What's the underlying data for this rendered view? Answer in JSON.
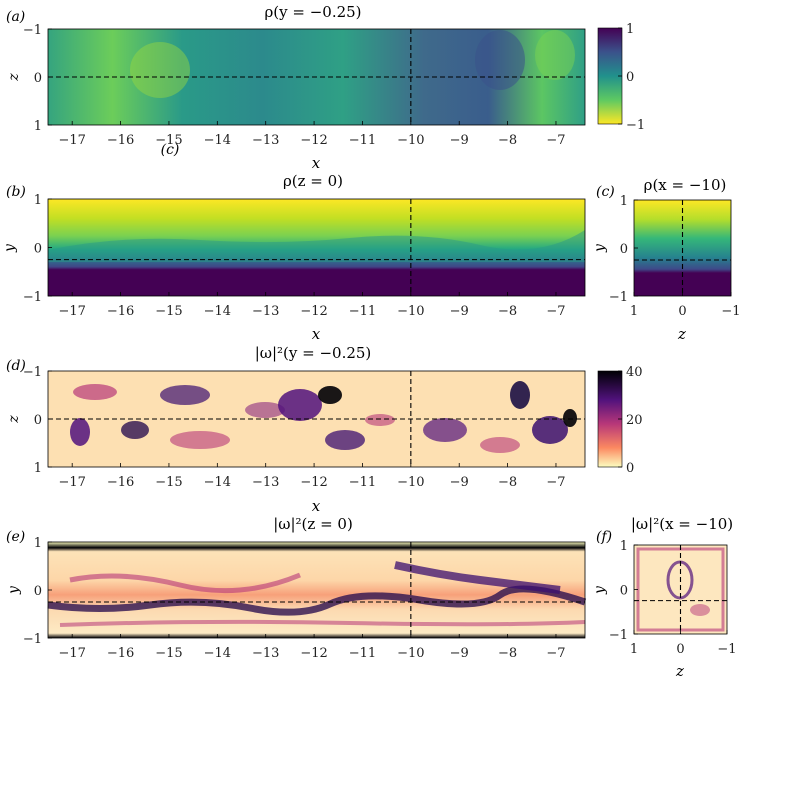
{
  "chart_data": [
    {
      "type": "heatmap",
      "panel": "(a)",
      "title": "ρ(y = −0.25)",
      "xlabel": "x",
      "ylabel": "z",
      "xlim": [
        -17.5,
        -6.4
      ],
      "ylim": [
        1,
        -1
      ],
      "xticks": [
        -17,
        -16,
        -15,
        -14,
        -13,
        -12,
        -11,
        -10,
        -9,
        -8,
        -7
      ],
      "yticks": [
        -1,
        0,
        1
      ],
      "colormap": "viridis-reversed",
      "field": "density",
      "dashed_lines": {
        "x": -10,
        "z": 0
      }
    },
    {
      "type": "heatmap",
      "panel": "(b)",
      "title": "ρ(z = 0)",
      "xlabel": "x",
      "ylabel": "y",
      "xlim": [
        -17.5,
        -6.4
      ],
      "ylim": [
        -1,
        1
      ],
      "xticks": [
        -17,
        -16,
        -15,
        -14,
        -13,
        -12,
        -11,
        -10,
        -9,
        -8,
        -7
      ],
      "yticks": [
        -1,
        0,
        1
      ],
      "colormap": "viridis-reversed",
      "field": "density",
      "dashed_lines": {
        "x": -10,
        "y": -0.25
      }
    },
    {
      "type": "heatmap",
      "panel": "(c)",
      "title": "ρ(x = −10)",
      "xlabel": "z",
      "ylabel": "y",
      "xlim": [
        1,
        -1
      ],
      "ylim": [
        -1,
        1
      ],
      "xticks": [
        1,
        0,
        -1
      ],
      "yticks": [
        -1,
        0,
        1
      ],
      "colormap": "viridis-reversed",
      "field": "density",
      "dashed_lines": {
        "z": 0,
        "y": -0.25
      }
    },
    {
      "type": "heatmap",
      "panel": "(d)",
      "title": "|ω|²(y = −0.25)",
      "xlabel": "x",
      "ylabel": "z",
      "xlim": [
        -17.5,
        -6.4
      ],
      "ylim": [
        1,
        -1
      ],
      "xticks": [
        -17,
        -16,
        -15,
        -14,
        -13,
        -12,
        -11,
        -10,
        -9,
        -8,
        -7
      ],
      "yticks": [
        -1,
        0,
        1
      ],
      "colormap": "magma-reversed",
      "field": "enstrophy",
      "dashed_lines": {
        "x": -10,
        "z": 0
      }
    },
    {
      "type": "heatmap",
      "panel": "(e)",
      "title": "|ω|²(z = 0)",
      "xlabel": "",
      "ylabel": "y",
      "xlim": [
        -17.5,
        -6.4
      ],
      "ylim": [
        -1,
        1
      ],
      "xticks": [
        -17,
        -16,
        -15,
        -14,
        -13,
        -12,
        -11,
        -10,
        -9,
        -8,
        -7
      ],
      "yticks": [
        -1,
        0,
        1
      ],
      "colormap": "magma-reversed",
      "field": "enstrophy",
      "dashed_lines": {
        "x": -10,
        "y": -0.25
      }
    },
    {
      "type": "heatmap",
      "panel": "(f)",
      "title": "|ω|²(x = −10)",
      "xlabel": "z",
      "ylabel": "y",
      "xlim": [
        1,
        -1
      ],
      "ylim": [
        -1,
        1
      ],
      "xticks": [
        1,
        0,
        -1
      ],
      "yticks": [
        -1,
        0,
        1
      ],
      "colormap": "magma-reversed",
      "field": "enstrophy",
      "dashed_lines": {
        "z": 0,
        "y": -0.25
      }
    }
  ],
  "colorbars": [
    {
      "for": "ρ",
      "ticks": [
        1,
        0,
        -1
      ],
      "range": [
        -1,
        1
      ],
      "colors": [
        "#fde725",
        "#5ec962",
        "#21918c",
        "#3b528b",
        "#440154"
      ]
    },
    {
      "for": "|ω|²",
      "ticks": [
        40,
        20,
        0
      ],
      "range": [
        0,
        40
      ],
      "colors": [
        "#fcfdbf",
        "#fc8961",
        "#b73779",
        "#51127c",
        "#000004"
      ]
    }
  ],
  "stray_label": "(c)"
}
